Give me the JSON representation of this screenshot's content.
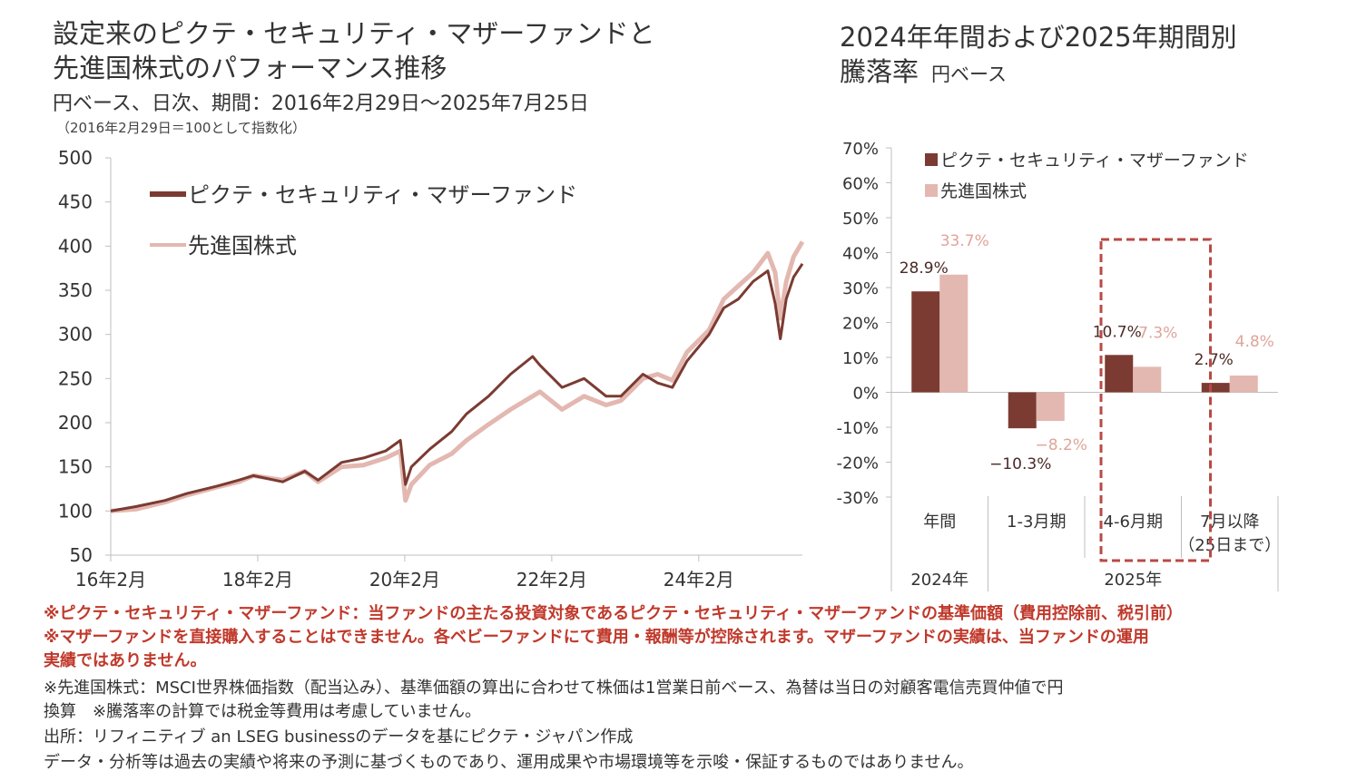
{
  "left": {
    "title_line1": "設定来のピクテ・セキュリティ・マザーファンドと",
    "title_line2": "先進国株式のパフォーマンス推移",
    "subtitle": "円ベース、日次、期間：2016年2月29日～2025年7月25日",
    "note": "（2016年2月29日＝100として指数化）"
  },
  "right": {
    "title_line1": "2024年年間および2025年期間別",
    "title_line2": "騰落率",
    "unit": "円ベース"
  },
  "chart_data": [
    {
      "type": "line",
      "ylim": [
        50,
        500
      ],
      "yticks": [
        "500",
        "450",
        "400",
        "350",
        "300",
        "250",
        "200",
        "150",
        "100",
        "50"
      ],
      "xticks": [
        "16年2月",
        "18年2月",
        "20年2月",
        "22年2月",
        "24年2月"
      ],
      "xlim": [
        2016.16,
        2025.57
      ],
      "xtick_positions": [
        2016.16,
        2018.16,
        2020.16,
        2022.16,
        2024.16
      ],
      "grid": false,
      "legend": "top-left",
      "series": [
        {
          "name": "ピクテ・セキュリティ・マザーファンド",
          "color": "#7b3b32",
          "x": [
            2016.16,
            2016.5,
            2016.9,
            2017.2,
            2017.6,
            2017.9,
            2018.1,
            2018.5,
            2018.8,
            2018.98,
            2019.3,
            2019.6,
            2019.9,
            2020.1,
            2020.17,
            2020.25,
            2020.5,
            2020.8,
            2021.0,
            2021.3,
            2021.6,
            2021.9,
            2022.0,
            2022.3,
            2022.6,
            2022.9,
            2023.1,
            2023.4,
            2023.6,
            2023.8,
            2024.0,
            2024.3,
            2024.5,
            2024.7,
            2024.9,
            2025.1,
            2025.2,
            2025.27,
            2025.35,
            2025.45,
            2025.57
          ],
          "y": [
            100,
            105,
            112,
            120,
            128,
            135,
            140,
            133,
            145,
            135,
            155,
            160,
            168,
            180,
            130,
            150,
            170,
            190,
            210,
            230,
            255,
            275,
            265,
            240,
            250,
            230,
            230,
            255,
            245,
            240,
            270,
            300,
            330,
            340,
            360,
            372,
            335,
            295,
            340,
            365,
            380
          ]
        },
        {
          "name": "先進国株式",
          "color": "#e3b8b0",
          "x": [
            2016.16,
            2016.5,
            2016.9,
            2017.2,
            2017.6,
            2017.9,
            2018.1,
            2018.5,
            2018.8,
            2018.98,
            2019.3,
            2019.6,
            2019.9,
            2020.1,
            2020.17,
            2020.25,
            2020.5,
            2020.8,
            2021.0,
            2021.3,
            2021.6,
            2021.9,
            2022.0,
            2022.3,
            2022.6,
            2022.9,
            2023.1,
            2023.4,
            2023.6,
            2023.8,
            2024.0,
            2024.3,
            2024.5,
            2024.7,
            2024.9,
            2025.1,
            2025.2,
            2025.27,
            2025.35,
            2025.45,
            2025.57
          ],
          "y": [
            100,
            102,
            110,
            118,
            127,
            133,
            140,
            135,
            145,
            133,
            150,
            152,
            160,
            168,
            112,
            130,
            152,
            165,
            180,
            198,
            215,
            230,
            235,
            215,
            230,
            220,
            225,
            250,
            255,
            248,
            280,
            305,
            340,
            355,
            370,
            392,
            370,
            318,
            360,
            388,
            405
          ]
        }
      ]
    },
    {
      "type": "bar",
      "ylim": [
        -30,
        70
      ],
      "yticks": [
        "70%",
        "60%",
        "50%",
        "40%",
        "30%",
        "20%",
        "10%",
        "0%",
        "-10%",
        "-20%",
        "-30%"
      ],
      "categories": [
        "年間",
        "1-3月期",
        "4-6月期",
        "7月以降"
      ],
      "category_sub": [
        "",
        "",
        "",
        "（25日まで）"
      ],
      "groups": [
        {
          "label": "2024年",
          "span": 1
        },
        {
          "label": "2025年",
          "span": 3
        }
      ],
      "highlight_category": "4-6月期",
      "legend": "top",
      "series": [
        {
          "name": "ピクテ・セキュリティ・マザーファンド",
          "color": "#7b3b32",
          "values": [
            28.9,
            -10.3,
            10.7,
            2.7
          ],
          "labels": [
            "28.9%",
            "−10.3%",
            "10.7%",
            "2.7%"
          ]
        },
        {
          "name": "先進国株式",
          "color": "#e3b8b0",
          "values": [
            33.7,
            -8.2,
            7.3,
            4.8
          ],
          "labels": [
            "33.7%",
            "−8.2%",
            "7.3%",
            "4.8%"
          ]
        }
      ]
    }
  ],
  "notes": {
    "red1": "※ピクテ・セキュリティ・マザーファンド：当ファンドの主たる投資対象であるピクテ・セキュリティ・マザーファンドの基準価額（費用控除前、税引前）",
    "red2": "※マザーファンドを直接購入することはできません。各ベビーファンドにて費用・報酬等が控除されます。マザーファンドの実績は、当ファンドの運用",
    "red3": "実績ではありません。",
    "gray1": "※先進国株式：MSCI世界株価指数（配当込み）、基準価額の算出に合わせて株価は1営業日前ベース、為替は当日の対顧客電信売買仲値で円",
    "gray2": "換算　※騰落率の計算では税金等費用は考慮していません。",
    "gray3": "出所：リフィニティブ an LSEG businessのデータを基にピクテ・ジャパン作成",
    "gray4": "データ・分析等は過去の実績や将来の予測に基づくものであり、運用成果や市場環境等を示唆・保証するものではありません。"
  }
}
